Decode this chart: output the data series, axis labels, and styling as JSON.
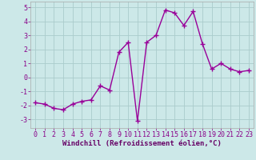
{
  "x": [
    0,
    1,
    2,
    3,
    4,
    5,
    6,
    7,
    8,
    9,
    10,
    11,
    12,
    13,
    14,
    15,
    16,
    17,
    18,
    19,
    20,
    21,
    22,
    23
  ],
  "y": [
    -1.8,
    -1.9,
    -2.2,
    -2.3,
    -1.9,
    -1.7,
    -1.6,
    -0.6,
    -0.9,
    1.8,
    2.5,
    -3.1,
    2.5,
    3.0,
    4.8,
    4.6,
    3.7,
    4.7,
    2.4,
    0.6,
    1.0,
    0.6,
    0.4,
    0.5
  ],
  "line_color": "#990099",
  "marker": "+",
  "markersize": 4,
  "linewidth": 1.0,
  "xlabel": "Windchill (Refroidissement éolien,°C)",
  "xlabel_fontsize": 6.5,
  "background_color": "#cce8e8",
  "grid_color": "#aacccc",
  "yticks": [
    -3,
    -2,
    -1,
    0,
    1,
    2,
    3,
    4,
    5
  ],
  "xticks": [
    0,
    1,
    2,
    3,
    4,
    5,
    6,
    7,
    8,
    9,
    10,
    11,
    12,
    13,
    14,
    15,
    16,
    17,
    18,
    19,
    20,
    21,
    22,
    23
  ],
  "ylim": [
    -3.6,
    5.4
  ],
  "xlim": [
    -0.5,
    23.5
  ],
  "tick_fontsize": 6.0,
  "tick_color": "#880088",
  "label_color": "#660066"
}
